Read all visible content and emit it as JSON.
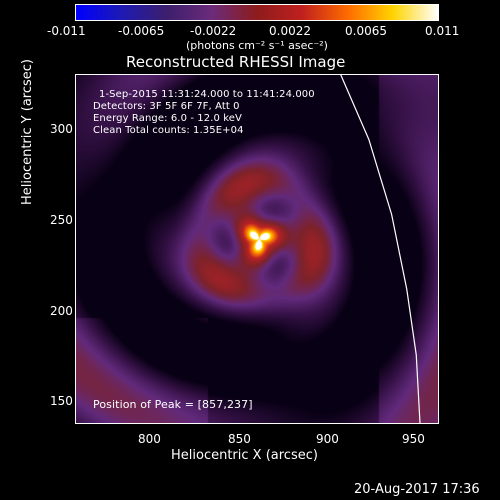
{
  "page": {
    "date_stamp": "20-Aug-2017 17:36"
  },
  "colorbar": {
    "tick_labels": [
      "-0.011",
      "-0.0065",
      "-0.0022",
      "0.0022",
      "0.0065",
      "0.011"
    ],
    "units": "(photons cm⁻² s⁻¹ asec⁻²)",
    "colors": {
      "stops": [
        "#0000ff",
        "#1e1ab4",
        "#3c1f6d",
        "#6b2c7b",
        "#8e1c1c",
        "#c0211f",
        "#ff6b00",
        "#ffd400",
        "#ffffff"
      ]
    }
  },
  "image": {
    "title": "Reconstructed RHESSI Image",
    "xlabel": "Heliocentric X (arcsec)",
    "ylabel": "Heliocentric Y (arcsec)",
    "x_tick_labels": [
      "800",
      "850",
      "900",
      "950"
    ],
    "y_tick_labels": [
      "150",
      "200",
      "250",
      "300"
    ],
    "overlay": [
      "1-Sep-2015 11:31:24.000 to 11:41:24.000",
      "Detectors: 3F 5F 6F 7F, Att 0",
      "Energy Range: 6.0 - 12.0 keV",
      "Clean    Total counts: 1.35E+04"
    ],
    "peak_label": "Position of Peak = [857,237]",
    "peak_x": 857,
    "peak_y": 237
  },
  "chart_data": {
    "type": "heatmap",
    "title": "Reconstructed RHESSI Image",
    "xlabel": "Heliocentric X (arcsec)",
    "ylabel": "Heliocentric Y (arcsec)",
    "xlim": [
      760,
      952
    ],
    "ylim": [
      138,
      325
    ],
    "x_ticks": [
      800,
      850,
      900,
      950
    ],
    "y_ticks": [
      150,
      200,
      250,
      300
    ],
    "colorbar": {
      "range": [
        -0.011,
        0.011
      ],
      "ticks": [
        -0.011,
        -0.0065,
        -0.0022,
        0.0022,
        0.0065,
        0.011
      ],
      "units": "(photons cm⁻² s⁻¹ asec⁻²)"
    },
    "peak": {
      "x": 857,
      "y": 237
    },
    "grid": false,
    "limb_curve": [
      {
        "x": 900,
        "y": 325
      },
      {
        "x": 915,
        "y": 290
      },
      {
        "x": 927,
        "y": 250
      },
      {
        "x": 935,
        "y": 210
      },
      {
        "x": 940,
        "y": 175
      },
      {
        "x": 942,
        "y": 138
      }
    ]
  }
}
